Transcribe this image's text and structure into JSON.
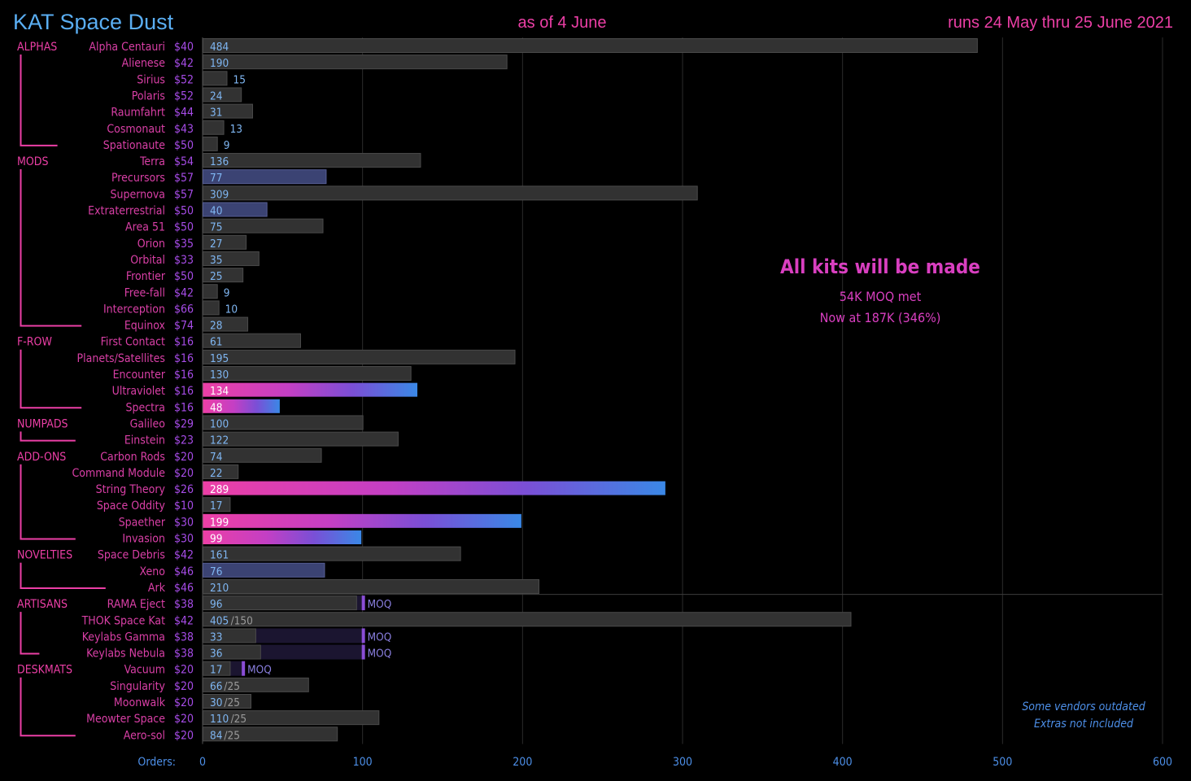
{
  "header": {
    "title": "KAT Space Dust",
    "date": "as of 4 June",
    "runs": "runs 24 May thru 25 June 2021"
  },
  "annotation": {
    "headline": "All kits will be made",
    "line1": "54K MOQ met",
    "line2": "Now at 187K (346%)"
  },
  "footnote": {
    "line1": "Some vendors outdated",
    "line2": "Extras not included"
  },
  "colors": {
    "bar": "#323232",
    "bar_blue": "#3b4373",
    "pink": "#ec3fa6",
    "purple": "#8a4dd6",
    "blue": "#3a88e6",
    "value_blue": "#7fb6f2",
    "tick": "#4d8fe8"
  },
  "chart_data": {
    "type": "bar",
    "orientation": "horizontal",
    "xlabel": "Orders:",
    "xlim": [
      0,
      600
    ],
    "xticks": [
      0,
      100,
      200,
      300,
      400,
      500,
      600
    ],
    "grid": true,
    "moq_label": "MOQ",
    "groups": [
      {
        "name": "ALPHAS",
        "items": [
          {
            "name": "Alpha Centauri",
            "price": "$40",
            "value": 484
          },
          {
            "name": "Alienese",
            "price": "$42",
            "value": 190
          },
          {
            "name": "Sirius",
            "price": "$52",
            "value": 15
          },
          {
            "name": "Polaris",
            "price": "$52",
            "value": 24
          },
          {
            "name": "Raumfahrt",
            "price": "$44",
            "value": 31
          },
          {
            "name": "Cosmonaut",
            "price": "$43",
            "value": 13
          },
          {
            "name": "Spationaute",
            "price": "$50",
            "value": 9
          }
        ]
      },
      {
        "name": "MODS",
        "items": [
          {
            "name": "Terra",
            "price": "$54",
            "value": 136
          },
          {
            "name": "Precursors",
            "price": "$57",
            "value": 77,
            "style": "blue"
          },
          {
            "name": "Supernova",
            "price": "$57",
            "value": 309
          },
          {
            "name": "Extraterrestrial",
            "price": "$50",
            "value": 40,
            "style": "blue"
          },
          {
            "name": "Area 51",
            "price": "$50",
            "value": 75
          },
          {
            "name": "Orion",
            "price": "$35",
            "value": 27
          },
          {
            "name": "Orbital",
            "price": "$33",
            "value": 35
          },
          {
            "name": "Frontier",
            "price": "$50",
            "value": 25
          },
          {
            "name": "Free-fall",
            "price": "$42",
            "value": 9
          },
          {
            "name": "Interception",
            "price": "$66",
            "value": 10
          },
          {
            "name": "Equinox",
            "price": "$74",
            "value": 28
          }
        ]
      },
      {
        "name": "F-ROW",
        "items": [
          {
            "name": "First Contact",
            "price": "$16",
            "value": 61
          },
          {
            "name": "Planets/Satellites",
            "price": "$16",
            "value": 195
          },
          {
            "name": "Encounter",
            "price": "$16",
            "value": 130
          },
          {
            "name": "Ultraviolet",
            "price": "$16",
            "value": 134,
            "style": "gradient"
          },
          {
            "name": "Spectra",
            "price": "$16",
            "value": 48,
            "style": "gradient"
          }
        ]
      },
      {
        "name": "NUMPADS",
        "items": [
          {
            "name": "Galileo",
            "price": "$29",
            "value": 100
          },
          {
            "name": "Einstein",
            "price": "$23",
            "value": 122
          }
        ]
      },
      {
        "name": "ADD-ONS",
        "items": [
          {
            "name": "Carbon Rods",
            "price": "$20",
            "value": 74
          },
          {
            "name": "Command Module",
            "price": "$20",
            "value": 22
          },
          {
            "name": "String Theory",
            "price": "$26",
            "value": 289,
            "style": "gradient"
          },
          {
            "name": "Space Oddity",
            "price": "$10",
            "value": 17
          },
          {
            "name": "Spaether",
            "price": "$30",
            "value": 199,
            "style": "gradient"
          },
          {
            "name": "Invasion",
            "price": "$30",
            "value": 99,
            "style": "gradient"
          }
        ]
      },
      {
        "name": "NOVELTIES",
        "items": [
          {
            "name": "Space Debris",
            "price": "$42",
            "value": 161
          },
          {
            "name": "Xeno",
            "price": "$46",
            "value": 76,
            "style": "blue"
          },
          {
            "name": "Ark",
            "price": "$46",
            "value": 210
          }
        ]
      },
      {
        "name": "ARTISANS",
        "items": [
          {
            "name": "RAMA Eject",
            "price": "$38",
            "value": 96,
            "moq": 100
          },
          {
            "name": "THOK Space Kat",
            "price": "$42",
            "value": 405,
            "cap": "/150"
          },
          {
            "name": "Keylabs Gamma",
            "price": "$38",
            "value": 33,
            "moq": 100
          },
          {
            "name": "Keylabs Nebula",
            "price": "$38",
            "value": 36,
            "moq": 100
          }
        ]
      },
      {
        "name": "DESKMATS",
        "items": [
          {
            "name": "Vacuum",
            "price": "$20",
            "value": 17,
            "moq": 25
          },
          {
            "name": "Singularity",
            "price": "$20",
            "value": 66,
            "cap": "/25"
          },
          {
            "name": "Moonwalk",
            "price": "$20",
            "value": 30,
            "cap": "/25"
          },
          {
            "name": "Meowter Space",
            "price": "$20",
            "value": 110,
            "cap": "/25"
          },
          {
            "name": "Aero-sol",
            "price": "$20",
            "value": 84,
            "cap": "/25"
          }
        ]
      }
    ]
  }
}
